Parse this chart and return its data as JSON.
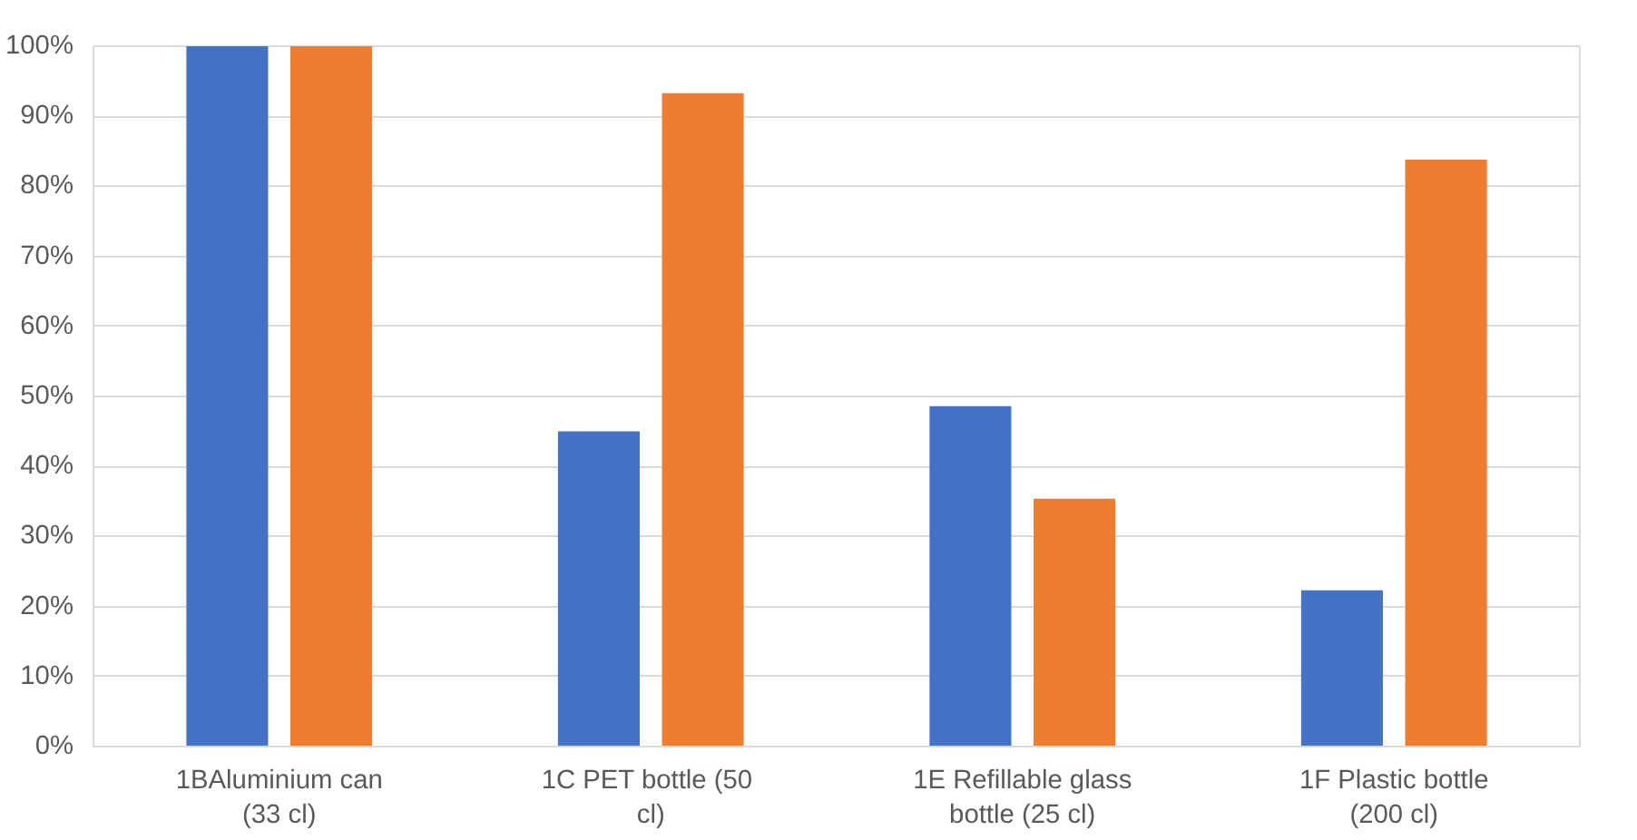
{
  "chart_data": {
    "type": "bar",
    "categories": [
      "1BAluminium can\n(33 cl)",
      "1C PET  bottle (50\ncl)",
      "1E Refillable glass\nbottle (25 cl)",
      "1F Plastic bottle\n(200 cl)"
    ],
    "series": [
      {
        "color": "#4472c4",
        "values": [
          100,
          45,
          48.6,
          22.3
        ]
      },
      {
        "color": "#ed7d31",
        "values": [
          100,
          93.3,
          35.4,
          83.8
        ]
      }
    ],
    "ylim": [
      0,
      100
    ],
    "yticks": [
      {
        "value": 0,
        "label": "0%"
      },
      {
        "value": 10,
        "label": "10%"
      },
      {
        "value": 20,
        "label": "20%"
      },
      {
        "value": 30,
        "label": "30%"
      },
      {
        "value": 40,
        "label": "40%"
      },
      {
        "value": 50,
        "label": "50%"
      },
      {
        "value": 60,
        "label": "60%"
      },
      {
        "value": 70,
        "label": "70%"
      },
      {
        "value": 80,
        "label": "80%"
      },
      {
        "value": 90,
        "label": "90%"
      },
      {
        "value": 100,
        "label": "100%"
      }
    ],
    "grid": "y"
  }
}
